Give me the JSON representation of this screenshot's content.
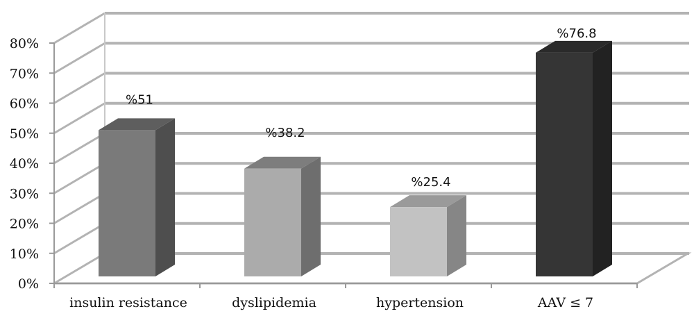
{
  "chart_data": {
    "type": "bar",
    "three_d": true,
    "categories": [
      "insulin resistance",
      "dyslipidemia",
      "hypertension",
      "AAV ≤ 7"
    ],
    "values": [
      51,
      38.2,
      25.4,
      76.8
    ],
    "data_labels": [
      "%51",
      "%38.2",
      "%25.4",
      "%76.8"
    ],
    "y_ticks": [
      "0%",
      "10%",
      "20%",
      "30%",
      "40%",
      "50%",
      "60%",
      "70%",
      "80%"
    ],
    "ylim": [
      0,
      80
    ],
    "grid": true,
    "legend": "none",
    "title": "",
    "xlabel": "",
    "ylabel": "",
    "colors": [
      {
        "front": "#7a7a7a",
        "side": "#4e4e4e",
        "top": "#5e5e5e"
      },
      {
        "front": "#ababab",
        "side": "#6e6e6e",
        "top": "#7d7d7d"
      },
      {
        "front": "#c2c2c2",
        "side": "#868686",
        "top": "#9a9a9a"
      },
      {
        "front": "#353535",
        "side": "#222222",
        "top": "#2a2a2a"
      }
    ]
  }
}
